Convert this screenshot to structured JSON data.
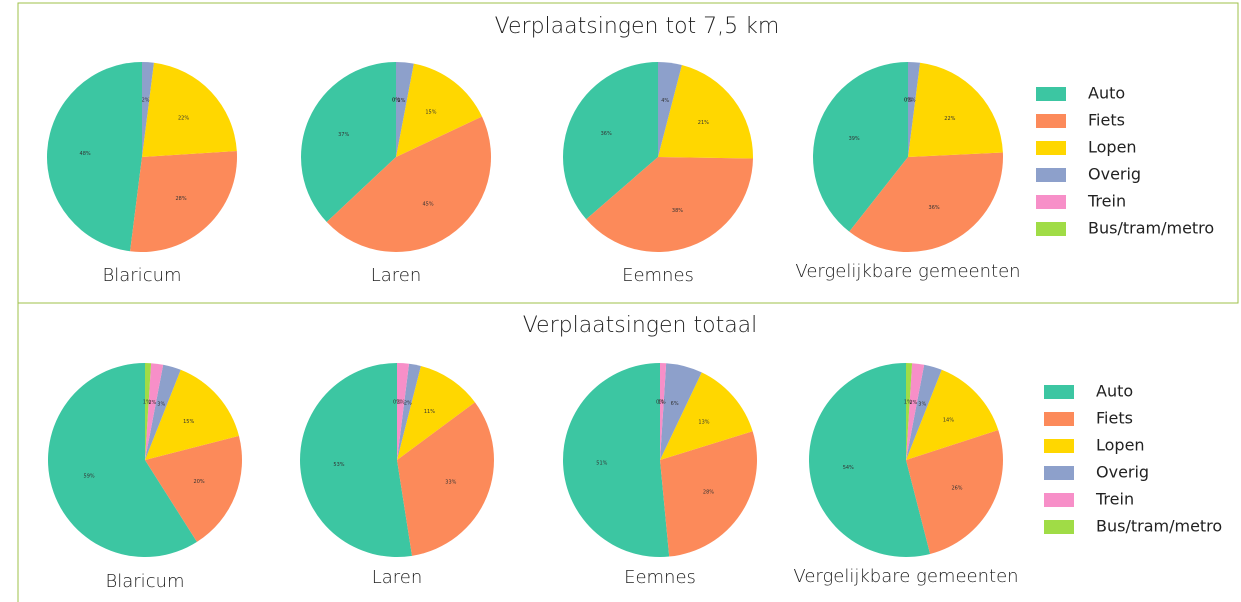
{
  "sections": [
    "Verplaatsingen tot 7,5 km",
    "Verplaatsingen totaal"
  ],
  "chart_data": [
    {
      "type": "pie",
      "title": "Blaricum",
      "categories": [
        "Auto",
        "Fiets",
        "Lopen",
        "Overig",
        "Trein",
        "Bus/tram/metro"
      ],
      "colors": [
        "#3cc6a2",
        "#fc8a5a",
        "#ffd700",
        "#8da0cb",
        "#f78fc8",
        "#a0dc46"
      ],
      "values": [
        48,
        28,
        22,
        2,
        0,
        0
      ],
      "value_labels": [
        "48%",
        "28%",
        "22%",
        "2%",
        null,
        null
      ]
    },
    {
      "type": "pie",
      "title": "Laren",
      "categories": [
        "Auto",
        "Fiets",
        "Lopen",
        "Overig",
        "Trein",
        "Bus/tram/metro"
      ],
      "colors": [
        "#3cc6a2",
        "#fc8a5a",
        "#ffd700",
        "#8da0cb",
        "#f78fc8",
        "#a0dc46"
      ],
      "values": [
        37,
        45,
        15,
        3,
        0,
        0
      ],
      "value_labels": [
        "37%",
        "45%",
        "15%",
        "3%",
        "0%",
        "0%"
      ]
    },
    {
      "type": "pie",
      "title": "Eemnes",
      "categories": [
        "Auto",
        "Fiets",
        "Lopen",
        "Overig",
        "Trein",
        "Bus/tram/metro"
      ],
      "colors": [
        "#3cc6a2",
        "#fc8a5a",
        "#ffd700",
        "#8da0cb",
        "#f78fc8",
        "#a0dc46"
      ],
      "values": [
        36,
        38,
        21,
        4,
        0,
        0
      ],
      "value_labels": [
        "36%",
        "38%",
        "21%",
        "4%",
        null,
        null
      ]
    },
    {
      "type": "pie",
      "title": "Vergelijkbare gemeenten",
      "categories": [
        "Auto",
        "Fiets",
        "Lopen",
        "Overig",
        "Trein",
        "Bus/tram/metro"
      ],
      "colors": [
        "#3cc6a2",
        "#fc8a5a",
        "#ffd700",
        "#8da0cb",
        "#f78fc8",
        "#a0dc46"
      ],
      "values": [
        39,
        36,
        22,
        2,
        0,
        0
      ],
      "value_labels": [
        "39%",
        "36%",
        "22%",
        "2%",
        "0%",
        "0%"
      ]
    },
    {
      "type": "pie",
      "title": "Blaricum",
      "categories": [
        "Auto",
        "Fiets",
        "Lopen",
        "Overig",
        "Trein",
        "Bus/tram/metro"
      ],
      "colors": [
        "#3cc6a2",
        "#fc8a5a",
        "#ffd700",
        "#8da0cb",
        "#f78fc8",
        "#a0dc46"
      ],
      "values": [
        59,
        20,
        15,
        3,
        2,
        1
      ],
      "value_labels": [
        "59%",
        "20%",
        "15%",
        "3%",
        "2%",
        "1%"
      ]
    },
    {
      "type": "pie",
      "title": "Laren",
      "categories": [
        "Auto",
        "Fiets",
        "Lopen",
        "Overig",
        "Trein",
        "Bus/tram/metro"
      ],
      "colors": [
        "#3cc6a2",
        "#fc8a5a",
        "#ffd700",
        "#8da0cb",
        "#f78fc8",
        "#a0dc46"
      ],
      "values": [
        53,
        33,
        11,
        2,
        2,
        0
      ],
      "value_labels": [
        "53%",
        "33%",
        "11%",
        "2%",
        "2%",
        "0%"
      ]
    },
    {
      "type": "pie",
      "title": "Eemnes",
      "categories": [
        "Auto",
        "Fiets",
        "Lopen",
        "Overig",
        "Trein",
        "Bus/tram/metro"
      ],
      "colors": [
        "#3cc6a2",
        "#fc8a5a",
        "#ffd700",
        "#8da0cb",
        "#f78fc8",
        "#a0dc46"
      ],
      "values": [
        51,
        28,
        13,
        6,
        1,
        0
      ],
      "value_labels": [
        "51%",
        "28%",
        "13%",
        "6%",
        "1%",
        "0%"
      ]
    },
    {
      "type": "pie",
      "title": "Vergelijkbare gemeenten",
      "categories": [
        "Auto",
        "Fiets",
        "Lopen",
        "Overig",
        "Trein",
        "Bus/tram/metro"
      ],
      "colors": [
        "#3cc6a2",
        "#fc8a5a",
        "#ffd700",
        "#8da0cb",
        "#f78fc8",
        "#a0dc46"
      ],
      "values": [
        54,
        26,
        14,
        3,
        2,
        1
      ],
      "value_labels": [
        "54%",
        "26%",
        "14%",
        "3%",
        "2%",
        "1%"
      ]
    }
  ]
}
